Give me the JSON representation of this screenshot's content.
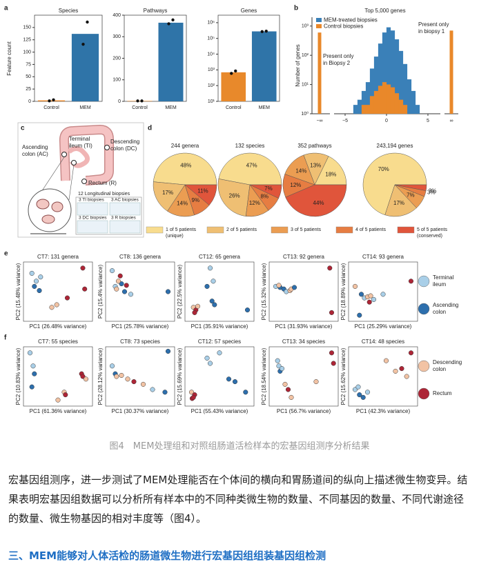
{
  "figure": {
    "a": {
      "label": "a",
      "y_label": "Feature count",
      "categories": [
        "Control",
        "MEM"
      ],
      "colors": [
        "#e8892b",
        "#2f74a8"
      ],
      "charts": [
        {
          "title": "Species",
          "values": [
            2,
            137
          ],
          "points": [
            [
              1,
              3
            ],
            [
              116,
              161
            ]
          ],
          "ylim": [
            0,
            175
          ],
          "yticks": [
            0,
            25,
            50,
            75,
            100,
            125,
            150
          ]
        },
        {
          "title": "Pathways",
          "values": [
            2,
            365
          ],
          "points": [
            [
              2,
              2
            ],
            [
              360,
              378
            ]
          ],
          "ylim": [
            0,
            400
          ],
          "yticks": [
            0,
            100,
            200,
            300,
            400
          ]
        },
        {
          "title": "Genes",
          "log": true,
          "values": [
            700,
            280000
          ],
          "points": [
            [
              600,
              850
            ],
            [
              270000,
              290000
            ]
          ],
          "ylim": [
            10,
            3000000
          ],
          "yticks": [
            {
              "value": 10,
              "label": "10¹"
            },
            {
              "value": 100,
              "label": "10²"
            },
            {
              "value": 1000,
              "label": "10³"
            },
            {
              "value": 10000,
              "label": "10⁴"
            },
            {
              "value": 100000,
              "label": "10⁵"
            },
            {
              "value": 1000000,
              "label": "10⁶"
            }
          ]
        }
      ]
    },
    "b": {
      "label": "b",
      "title": "Top 5,000 genes",
      "y_label": "Number of genes",
      "log": true,
      "bins": [
        -5,
        -4.5,
        -4,
        -3.5,
        -3,
        -2.5,
        -2,
        -1.5,
        -1,
        -0.5,
        0,
        0.5,
        1,
        1.5,
        2,
        2.5,
        3,
        3.5,
        4,
        4.5
      ],
      "series": [
        {
          "name": "MEM-treated biopsies",
          "color": "#3a80b8",
          "values": [
            1,
            1,
            2,
            3,
            6,
            12,
            35,
            90,
            250,
            600,
            900,
            700,
            350,
            140,
            50,
            15,
            6,
            2,
            1
          ],
          "inf_values": [
            1,
            0
          ]
        },
        {
          "name": "Control biopsies",
          "color": "#e9882a",
          "values": [
            0,
            0,
            0,
            1,
            2,
            2,
            4,
            6,
            9,
            12,
            10,
            8,
            5,
            3,
            2,
            1,
            1,
            0,
            0
          ],
          "inf_values": [
            600,
            700
          ]
        }
      ],
      "inf_labels": [
        "−∞",
        "∞"
      ],
      "xlim": [
        -6,
        6
      ],
      "xticks": [
        {
          "value": -5,
          "label": "−5"
        },
        0,
        5
      ],
      "ylim": [
        1,
        2000
      ],
      "yticks": [
        {
          "value": 1,
          "label": "10⁰"
        },
        {
          "value": 10,
          "label": "10¹"
        },
        {
          "value": 100,
          "label": "10²"
        },
        {
          "value": 1000,
          "label": "10³"
        }
      ],
      "annotations": [
        [
          "Present only",
          "in Biopsy 2"
        ],
        [
          "Present only",
          "in biopsy 1"
        ]
      ]
    },
    "c": {
      "label": "c",
      "sites": [
        [
          "Ascending",
          "colon (AC)"
        ],
        [
          "Terminal",
          "ileum (TI)"
        ],
        [
          "Descending",
          "colon (DC)"
        ],
        [
          "Rectum (R)"
        ]
      ],
      "biopsies_title": "12 Longitudinal biopsies",
      "biopsy_groups": [
        "3 TI biopsies",
        "3 AC biopsies",
        "3 DC biopsies",
        "3 R biopsies"
      ]
    },
    "d": {
      "label": "d",
      "colors": [
        "#f8dc8e",
        "#efbf73",
        "#eb9d52",
        "#e67d42",
        "#e0553b"
      ],
      "legend": [
        [
          "1 of 5 patients",
          "(unique)"
        ],
        [
          "2 of 5 patients"
        ],
        [
          "3 of 5 patients"
        ],
        [
          "4 of 5 patients"
        ],
        [
          "5 of 5 patients",
          "(conserved)"
        ]
      ],
      "pies": [
        {
          "title": "244 genera",
          "values": [
            48,
            17,
            14,
            9,
            11
          ],
          "value_labels": [
            "48%",
            "17%",
            "14%",
            "9%",
            "11%"
          ]
        },
        {
          "title": "132 species",
          "values": [
            47,
            26,
            12,
            8,
            7
          ],
          "value_labels": [
            "47%",
            "26%",
            "12%",
            "8%",
            "7%"
          ]
        },
        {
          "title": "352 pathways",
          "values": [
            18,
            13,
            14,
            12,
            44
          ],
          "value_labels": [
            "18%",
            "13%",
            "14%",
            "12%",
            "44%"
          ]
        },
        {
          "title": "243,194 genes",
          "values": [
            70,
            17,
            7,
            3,
            3
          ],
          "value_labels": [
            "70%",
            "17%",
            "7%",
            "3%",
            "3%"
          ]
        }
      ]
    },
    "e": {
      "label": "e",
      "legend": [
        {
          "name": [
            "Terminal",
            "ileum"
          ],
          "color": "#a9cfe8"
        },
        {
          "name": [
            "Ascending",
            "colon"
          ],
          "color": "#2d6fad"
        }
      ],
      "plots": [
        {
          "title": "CT7: 131 genera",
          "x_label": "PC1 (26.48% variance)",
          "y_label": "PC2 (15.48% variance)",
          "x": [
            0.08,
            0.15,
            0.22,
            0.12,
            0.2,
            0.4,
            0.48,
            0.65,
            0.9,
            0.93
          ],
          "y": [
            0.85,
            0.7,
            0.78,
            0.6,
            0.52,
            0.2,
            0.25,
            0.38,
            0.95,
            0.55
          ],
          "group": [
            0,
            0,
            0,
            1,
            1,
            2,
            2,
            3,
            3,
            3
          ]
        },
        {
          "title": "CT8: 136 genera",
          "x_label": "PC1 (25.78% variance)",
          "y_label": "PC2 (15.4% variance)",
          "x": [
            0.05,
            0.1,
            0.2,
            0.25,
            0.35,
            0.12,
            0.18,
            0.28,
            0.95,
            0.15
          ],
          "y": [
            0.9,
            0.6,
            0.65,
            0.5,
            0.45,
            0.55,
            0.8,
            0.62,
            0.5,
            0.7
          ],
          "group": [
            0,
            0,
            1,
            1,
            0,
            2,
            3,
            3,
            1,
            2
          ]
        },
        {
          "title": "CT12: 65 genera",
          "x_label": "PC1 (35.91% variance)",
          "y_label": "PC2 (22.5% variance)",
          "x": [
            0.35,
            0.4,
            0.3,
            0.38,
            0.42,
            0.08,
            0.12,
            0.1,
            0.15,
            0.95
          ],
          "y": [
            0.95,
            0.7,
            0.6,
            0.32,
            0.25,
            0.2,
            0.15,
            0.1,
            0.22,
            0.15
          ],
          "group": [
            0,
            0,
            1,
            1,
            1,
            2,
            3,
            3,
            2,
            1
          ]
        },
        {
          "title": "CT13: 92 genera",
          "x_label": "PC1 (31.93% variance)",
          "y_label": "PC2 (15.32% variance)",
          "x": [
            0.05,
            0.12,
            0.18,
            0.22,
            0.28,
            0.3,
            0.35,
            0.1,
            0.92,
            0.95
          ],
          "y": [
            0.6,
            0.58,
            0.55,
            0.5,
            0.52,
            0.55,
            0.58,
            0.62,
            0.95,
            0.1
          ],
          "group": [
            0,
            1,
            1,
            0,
            2,
            2,
            1,
            2,
            3,
            3
          ]
        },
        {
          "title": "CT14: 93 genera",
          "x_label": "PC1 (25.29% variance)",
          "y_label": "PC2 (18.89% variance)",
          "x": [
            0.05,
            0.15,
            0.2,
            0.25,
            0.3,
            0.35,
            0.5,
            0.28,
            0.95,
            0.12
          ],
          "y": [
            0.6,
            0.45,
            0.38,
            0.4,
            0.42,
            0.35,
            0.45,
            0.3,
            0.7,
            0.05
          ],
          "group": [
            2,
            1,
            0,
            2,
            2,
            0,
            0,
            3,
            3,
            1
          ]
        }
      ]
    },
    "f": {
      "label": "f",
      "legend": [
        {
          "name": [
            "Descending",
            "colon"
          ],
          "color": "#f2c3a4"
        },
        {
          "name": [
            "Rectum"
          ],
          "color": "#ad2536"
        }
      ],
      "plots": [
        {
          "title": "CT7: 55 species",
          "x_label": "PC1 (61.36% variance)",
          "y_label": "PC2 (10.83% variance)",
          "x": [
            0.05,
            0.1,
            0.12,
            0.08,
            0.5,
            0.6,
            0.62,
            0.88,
            0.9,
            0.95
          ],
          "y": [
            0.95,
            0.7,
            0.55,
            0.3,
            0.05,
            0.2,
            0.15,
            0.55,
            0.5,
            0.45
          ],
          "group": [
            0,
            0,
            1,
            1,
            2,
            2,
            3,
            3,
            3,
            2
          ]
        },
        {
          "title": "CT8: 73 species",
          "x_label": "PC1 (30.37% variance)",
          "y_label": "PC2 (28.12% variance)",
          "x": [
            0.05,
            0.1,
            0.2,
            0.3,
            0.4,
            0.55,
            0.7,
            0.9,
            0.12,
            0.95
          ],
          "y": [
            0.7,
            0.55,
            0.52,
            0.45,
            0.4,
            0.35,
            0.25,
            0.2,
            0.5,
            0.98
          ],
          "group": [
            0,
            1,
            2,
            2,
            3,
            2,
            0,
            1,
            2,
            1
          ]
        },
        {
          "title": "CT12: 57 species",
          "x_label": "PC1 (55.43% variance)",
          "y_label": "PC2 (15.69% variance)",
          "x": [
            0.3,
            0.35,
            0.5,
            0.05,
            0.1,
            0.06,
            0.08,
            0.65,
            0.75,
            0.92
          ],
          "y": [
            0.85,
            0.75,
            0.95,
            0.2,
            0.15,
            0.08,
            0.1,
            0.45,
            0.4,
            0.2
          ],
          "group": [
            0,
            0,
            0,
            2,
            3,
            3,
            3,
            1,
            1,
            1
          ]
        },
        {
          "title": "CT13: 34 species",
          "x_label": "PC1 (56.7% variance)",
          "y_label": "PC2 (18.54% variance)",
          "x": [
            0.08,
            0.1,
            0.12,
            0.2,
            0.15,
            0.3,
            0.25,
            0.7,
            0.95,
            0.98
          ],
          "y": [
            0.8,
            0.7,
            0.6,
            0.35,
            0.65,
            0.1,
            0.25,
            0.4,
            0.95,
            0.75
          ],
          "group": [
            0,
            0,
            1,
            2,
            0,
            2,
            3,
            2,
            3,
            3
          ]
        },
        {
          "title": "CT14: 48 species",
          "x_label": "PC1 (42.3% variance)",
          "y_label": "PC2 (15.62% variance)",
          "x": [
            0.05,
            0.12,
            0.1,
            0.18,
            0.25,
            0.55,
            0.7,
            0.8,
            0.88,
            0.95
          ],
          "y": [
            0.25,
            0.15,
            0.3,
            0.1,
            0.2,
            0.8,
            0.6,
            0.65,
            0.5,
            0.95
          ],
          "group": [
            0,
            1,
            0,
            1,
            0,
            2,
            2,
            3,
            2,
            3
          ]
        }
      ]
    }
  },
  "caption": "图4　MEM处理组和对照组肠道活检样本的宏基因组测序分析结果",
  "paragraph": "宏基因组测序，进一步测试了MEM处理能否在个体间的横向和胃肠道间的纵向上描述微生物变异。结果表明宏基因组数据可以分析所有样本中的不同种类微生物的数量、不同基因的数量、不同代谢途径的数量、微生物基因的相对丰度等（图4）。",
  "heading": "三、MEM能够对人体活检的肠道微生物进行宏基因组组装基因组检测"
}
